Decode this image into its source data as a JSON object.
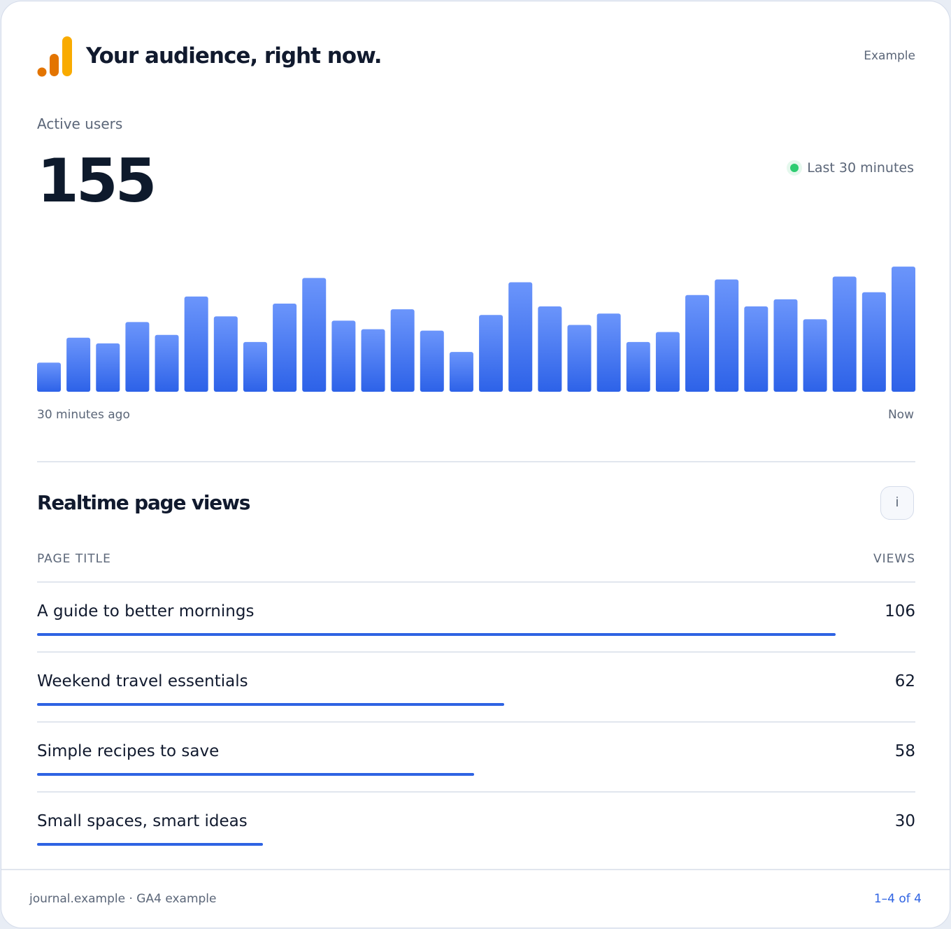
{
  "header": {
    "title": "Your audience, right now.",
    "badge": "Example",
    "logo_icon": "analytics-bars-logo",
    "logo_colors": [
      "#e37400",
      "#f9ab00"
    ]
  },
  "active_users": {
    "label": "Active users",
    "value": "155",
    "window": "Last 30 minutes",
    "status_color": "#2ecc71"
  },
  "chart_data": {
    "type": "bar",
    "title": "",
    "xlabel": "",
    "ylabel": "",
    "x_start_label": "30 minutes ago",
    "x_end_label": "Now",
    "values": [
      41,
      76,
      68,
      98,
      80,
      134,
      106,
      70,
      124,
      160,
      100,
      88,
      116,
      86,
      56,
      108,
      154,
      120,
      94,
      110,
      70,
      84,
      136,
      158,
      120,
      130,
      102,
      162,
      140,
      176
    ],
    "ylim": [
      0,
      185
    ],
    "grid": false,
    "colors": {
      "top": "#6b95fb",
      "bottom": "#2d62e8"
    }
  },
  "page_views": {
    "title": "Realtime page views",
    "info_label": "i",
    "col_title": "PAGE TITLE",
    "col_views": "VIEWS",
    "max": 106,
    "rows": [
      {
        "title": "A guide to better mornings",
        "views": "106",
        "value": 106
      },
      {
        "title": "Weekend travel essentials",
        "views": "62",
        "value": 62
      },
      {
        "title": "Simple recipes to save",
        "views": "58",
        "value": 58
      },
      {
        "title": "Small spaces, smart ideas",
        "views": "30",
        "value": 30
      }
    ],
    "bar_color": "#2e63e3"
  },
  "footer": {
    "source": "journal.example · GA4 example",
    "range": "1–4 of 4"
  }
}
